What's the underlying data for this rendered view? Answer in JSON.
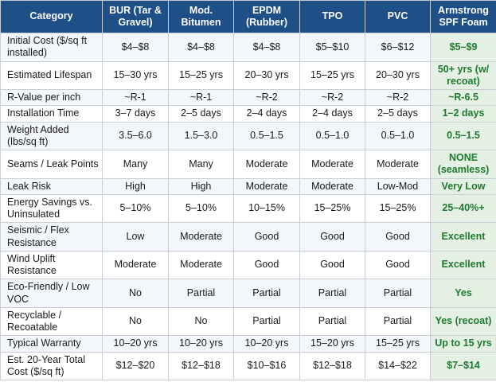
{
  "colors": {
    "header_bg": "#1e4f87",
    "header_text": "#ffffff",
    "row_alt_bg": "#f3f6fb",
    "row_bg": "#ffffff",
    "highlight_col_bg": "#e4f0e4",
    "highlight_text": "#1e7b2d",
    "border": "#c9ced6",
    "body_text": "#1a1a1a"
  },
  "table": {
    "columns": [
      {
        "label": "Category"
      },
      {
        "label": "BUR (Tar & Gravel)"
      },
      {
        "label": "Mod. Bitumen"
      },
      {
        "label": "EPDM (Rubber)"
      },
      {
        "label": "TPO"
      },
      {
        "label": "PVC"
      },
      {
        "label": "Armstrong SPF Foam"
      }
    ],
    "rows": [
      {
        "category": "Initial Cost ($/sq ft installed)",
        "values": [
          "$4–$8",
          "$4–$8",
          "$4–$8",
          "$5–$10",
          "$6–$12",
          "$5–$9"
        ]
      },
      {
        "category": "Estimated Lifespan",
        "values": [
          "15–30 yrs",
          "15–25 yrs",
          "20–30 yrs",
          "15–25 yrs",
          "20–30 yrs",
          "50+ yrs (w/ recoat)"
        ]
      },
      {
        "category": "R-Value per inch",
        "values": [
          "~R-1",
          "~R-1",
          "~R-2",
          "~R-2",
          "~R-2",
          "~R-6.5"
        ]
      },
      {
        "category": "Installation Time",
        "values": [
          "3–7 days",
          "2–5 days",
          "2–4 days",
          "2–4 days",
          "2–5 days",
          "1–2 days"
        ]
      },
      {
        "category": "Weight Added (lbs/sq ft)",
        "values": [
          "3.5–6.0",
          "1.5–3.0",
          "0.5–1.5",
          "0.5–1.0",
          "0.5–1.0",
          "0.5–1.5"
        ]
      },
      {
        "category": "Seams / Leak Points",
        "values": [
          "Many",
          "Many",
          "Moderate",
          "Moderate",
          "Moderate",
          "NONE (seamless)"
        ]
      },
      {
        "category": "Leak Risk",
        "values": [
          "High",
          "High",
          "Moderate",
          "Moderate",
          "Low-Mod",
          "Very Low"
        ]
      },
      {
        "category": "Energy Savings vs. Uninsulated",
        "values": [
          "5–10%",
          "5–10%",
          "10–15%",
          "15–25%",
          "15–25%",
          "25–40%+"
        ]
      },
      {
        "category": "Seismic / Flex Resistance",
        "values": [
          "Low",
          "Moderate",
          "Good",
          "Good",
          "Good",
          "Excellent"
        ]
      },
      {
        "category": "Wind Uplift Resistance",
        "values": [
          "Moderate",
          "Moderate",
          "Good",
          "Good",
          "Good",
          "Excellent"
        ]
      },
      {
        "category": "Eco-Friendly / Low VOC",
        "values": [
          "No",
          "Partial",
          "Partial",
          "Partial",
          "Partial",
          "Yes"
        ]
      },
      {
        "category": "Recyclable / Recoatable",
        "values": [
          "No",
          "No",
          "Partial",
          "Partial",
          "Partial",
          "Yes (recoat)"
        ]
      },
      {
        "category": "Typical Warranty",
        "values": [
          "10–20 yrs",
          "10–20 yrs",
          "10–20 yrs",
          "15–20 yrs",
          "15–25 yrs",
          "Up to 15 yrs"
        ]
      },
      {
        "category": "Est. 20-Year Total Cost ($/sq ft)",
        "values": [
          "$12–$20",
          "$12–$18",
          "$10–$16",
          "$12–$18",
          "$14–$22",
          "$7–$14"
        ]
      }
    ]
  }
}
